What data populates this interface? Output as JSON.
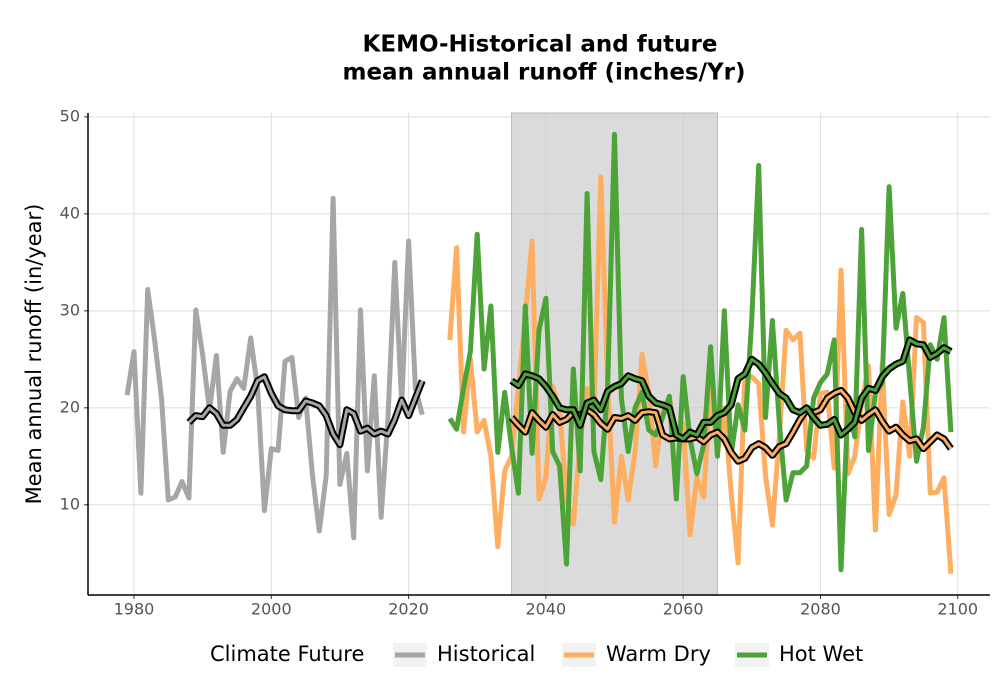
{
  "chart_data": {
    "type": "line",
    "title": [
      "KEMO-Historical and future",
      "mean annual runoff (inches/Yr)"
    ],
    "y_label": "Mean annual runoff (in/year)",
    "legend_title": "Climate Future",
    "xlim": [
      1973.3,
      2104.7
    ],
    "ylim": [
      0.7,
      50.4
    ],
    "xticks": [
      1980,
      2000,
      2020,
      2040,
      2060,
      2080,
      2100
    ],
    "yticks": [
      10,
      20,
      30,
      40,
      50
    ],
    "grid": true,
    "shaded_x": [
      2035,
      2065
    ],
    "series": [
      {
        "name": "Historical",
        "color": "#a6a6a6",
        "x": [
          1979,
          1980,
          1981,
          1982,
          1983,
          1984,
          1985,
          1986,
          1987,
          1988,
          1989,
          1990,
          1991,
          1992,
          1993,
          1994,
          1995,
          1996,
          1997,
          1998,
          1999,
          2000,
          2001,
          2002,
          2003,
          2004,
          2005,
          2006,
          2007,
          2008,
          2009,
          2010,
          2011,
          2012,
          2013,
          2014,
          2015,
          2016,
          2017,
          2018,
          2019,
          2020,
          2021,
          2022
        ],
        "values": [
          21.3,
          25.8,
          11.2,
          32.2,
          27,
          21,
          10.5,
          10.8,
          12.4,
          10.7,
          30.1,
          25.5,
          19.8,
          25.4,
          15.4,
          21.7,
          23,
          22,
          27.2,
          22,
          9.4,
          15.8,
          15.6,
          24.8,
          25.2,
          19,
          21,
          13,
          7.3,
          13,
          41.6,
          12.1,
          15.3,
          6.6,
          30.1,
          13.5,
          23.3,
          8.7,
          19,
          35,
          20.5,
          37.2,
          22,
          19.3
        ],
        "smooth_x": [
          1988,
          1989,
          1990,
          1991,
          1992,
          1993,
          1994,
          1995,
          1996,
          1997,
          1998,
          1999,
          2000,
          2001,
          2002,
          2003,
          2004,
          2005,
          2006,
          2007,
          2008,
          2009,
          2010,
          2011,
          2012,
          2013,
          2014,
          2015,
          2016,
          2017,
          2018,
          2019,
          2020,
          2021,
          2022
        ],
        "smooth_values": [
          18.5,
          19.2,
          19.1,
          20,
          19.4,
          18.2,
          18.2,
          18.8,
          20,
          21.2,
          22.8,
          23.2,
          21.5,
          20.2,
          19.8,
          19.7,
          19.7,
          20.7,
          20.5,
          20.2,
          19.2,
          17.3,
          16.2,
          19.8,
          19.4,
          17.6,
          17.9,
          17.3,
          17.6,
          17.3,
          18.8,
          20.8,
          19.2,
          21,
          22.8
        ]
      },
      {
        "name": "Warm Dry",
        "color": "#fdae61",
        "x": [
          2026,
          2027,
          2028,
          2029,
          2030,
          2031,
          2032,
          2033,
          2034,
          2035,
          2036,
          2037,
          2038,
          2039,
          2040,
          2041,
          2042,
          2043,
          2044,
          2045,
          2046,
          2047,
          2048,
          2049,
          2050,
          2051,
          2052,
          2053,
          2054,
          2055,
          2056,
          2057,
          2058,
          2059,
          2060,
          2061,
          2062,
          2063,
          2064,
          2065,
          2066,
          2067,
          2068,
          2069,
          2070,
          2071,
          2072,
          2073,
          2074,
          2075,
          2076,
          2077,
          2078,
          2079,
          2080,
          2081,
          2082,
          2083,
          2084,
          2085,
          2086,
          2087,
          2088,
          2089,
          2090,
          2091,
          2092,
          2093,
          2094,
          2095,
          2096,
          2097,
          2098,
          2099
        ],
        "values": [
          27,
          36.5,
          17.5,
          25,
          17.5,
          18.7,
          15,
          5.7,
          13.5,
          15,
          22,
          29.5,
          37.2,
          10.6,
          12.8,
          22.2,
          19.8,
          10.5,
          8,
          16.7,
          22,
          19.6,
          43.8,
          22.5,
          8.2,
          15,
          10.5,
          15.5,
          25.5,
          21.5,
          14,
          20,
          21,
          17.2,
          18.4,
          6.9,
          12.8,
          10.8,
          22.5,
          15.3,
          20,
          11.2,
          4,
          23.5,
          23.2,
          22.5,
          13,
          7.9,
          17,
          28,
          27,
          27.7,
          15.6,
          14.8,
          21.5,
          21.6,
          13.8,
          34.2,
          13.2,
          15,
          20.5,
          24.3,
          7.4,
          24.6,
          9,
          11,
          20.6,
          15,
          29.3,
          28.8,
          11.2,
          11.3,
          12.8,
          2.9
        ],
        "smooth_x": [
          2035,
          2036,
          2037,
          2038,
          2039,
          2040,
          2041,
          2042,
          2043,
          2044,
          2045,
          2046,
          2047,
          2048,
          2049,
          2050,
          2051,
          2052,
          2053,
          2054,
          2055,
          2056,
          2057,
          2058,
          2059,
          2060,
          2061,
          2062,
          2063,
          2064,
          2065,
          2066,
          2067,
          2068,
          2069,
          2070,
          2071,
          2072,
          2073,
          2074,
          2075,
          2076,
          2077,
          2078,
          2079,
          2080,
          2081,
          2082,
          2083,
          2084,
          2085,
          2086,
          2087,
          2088,
          2089,
          2090,
          2091,
          2092,
          2093,
          2094,
          2095,
          2096,
          2097,
          2098,
          2099
        ],
        "smooth_values": [
          19,
          18.2,
          17.5,
          19.5,
          18.7,
          18,
          19.3,
          18.5,
          18.8,
          19.5,
          19.2,
          19.8,
          19.3,
          18.4,
          17.8,
          19,
          18.9,
          19.2,
          18.7,
          19.5,
          19.6,
          19.5,
          17.2,
          16.8,
          16.9,
          16.8,
          16.8,
          17,
          16.5,
          17.2,
          17.5,
          16.8,
          15.4,
          14.5,
          14.8,
          15.9,
          16.3,
          15.9,
          15.1,
          16,
          16.3,
          17.5,
          18.8,
          19.8,
          19.5,
          19.8,
          21,
          21.5,
          21.8,
          21,
          19.5,
          18.7,
          19.3,
          19.8,
          18.6,
          17.6,
          18,
          17.2,
          16.6,
          16.8,
          15.8,
          16.5,
          17.2,
          16.8,
          15.8
        ]
      },
      {
        "name": "Hot Wet",
        "color": "#4da338",
        "x": [
          2026,
          2027,
          2028,
          2029,
          2030,
          2031,
          2032,
          2033,
          2034,
          2035,
          2036,
          2037,
          2038,
          2039,
          2040,
          2041,
          2042,
          2043,
          2044,
          2045,
          2046,
          2047,
          2048,
          2049,
          2050,
          2051,
          2052,
          2053,
          2054,
          2055,
          2056,
          2057,
          2058,
          2059,
          2060,
          2061,
          2062,
          2063,
          2064,
          2065,
          2066,
          2067,
          2068,
          2069,
          2070,
          2071,
          2072,
          2073,
          2074,
          2075,
          2076,
          2077,
          2078,
          2079,
          2080,
          2081,
          2082,
          2083,
          2084,
          2085,
          2086,
          2087,
          2088,
          2089,
          2090,
          2091,
          2092,
          2093,
          2094,
          2095,
          2096,
          2097,
          2098,
          2099
        ],
        "values": [
          18.9,
          17.8,
          22,
          25.8,
          37.9,
          24,
          30.5,
          15.4,
          21.6,
          16,
          11.2,
          30.5,
          15.3,
          28,
          31.3,
          15.5,
          14,
          3.9,
          24,
          13.5,
          42.1,
          15.5,
          12.6,
          22,
          48.2,
          21,
          15.5,
          20,
          21.6,
          17.7,
          17.2,
          19,
          21.2,
          10.6,
          23.2,
          16.8,
          13.2,
          16.2,
          26.3,
          15,
          30,
          15.2,
          20.3,
          17.7,
          29.2,
          45,
          19,
          29,
          18.5,
          10.5,
          13.3,
          13.3,
          14,
          21,
          22.6,
          23.5,
          27,
          3.3,
          20.3,
          17,
          38.4,
          15.6,
          21.5,
          22.6,
          42.8,
          28.2,
          31.8,
          23,
          14.5,
          18,
          26.5,
          25,
          29.3,
          17.5
        ],
        "smooth_x": [
          2035,
          2036,
          2037,
          2038,
          2039,
          2040,
          2041,
          2042,
          2043,
          2044,
          2045,
          2046,
          2047,
          2048,
          2049,
          2050,
          2051,
          2052,
          2053,
          2054,
          2055,
          2056,
          2057,
          2058,
          2059,
          2060,
          2061,
          2062,
          2063,
          2064,
          2065,
          2066,
          2067,
          2068,
          2069,
          2070,
          2071,
          2072,
          2073,
          2074,
          2075,
          2076,
          2077,
          2078,
          2079,
          2080,
          2081,
          2082,
          2083,
          2084,
          2085,
          2086,
          2087,
          2088,
          2089,
          2090,
          2091,
          2092,
          2093,
          2094,
          2095,
          2096,
          2097,
          2098,
          2099
        ],
        "smooth_values": [
          22.8,
          22.3,
          23.5,
          23.3,
          23,
          22.2,
          21.2,
          20,
          19.8,
          19.8,
          18.2,
          20.5,
          20.8,
          19.8,
          21.7,
          22.2,
          22.5,
          23.3,
          23,
          22.8,
          21.2,
          20.5,
          20.3,
          20,
          17.2,
          16.8,
          17.5,
          17.2,
          18.5,
          18.5,
          19.2,
          19.5,
          20.3,
          23,
          23.5,
          25,
          24.5,
          23.6,
          22.5,
          21.5,
          21,
          19.8,
          19.5,
          20,
          19,
          18.2,
          18.3,
          18.8,
          17.2,
          17.8,
          18.5,
          21,
          22,
          21.8,
          23.2,
          24,
          24.5,
          24.8,
          27,
          26.6,
          26.5,
          25.2,
          25.6,
          26.2,
          25.8
        ]
      }
    ]
  }
}
